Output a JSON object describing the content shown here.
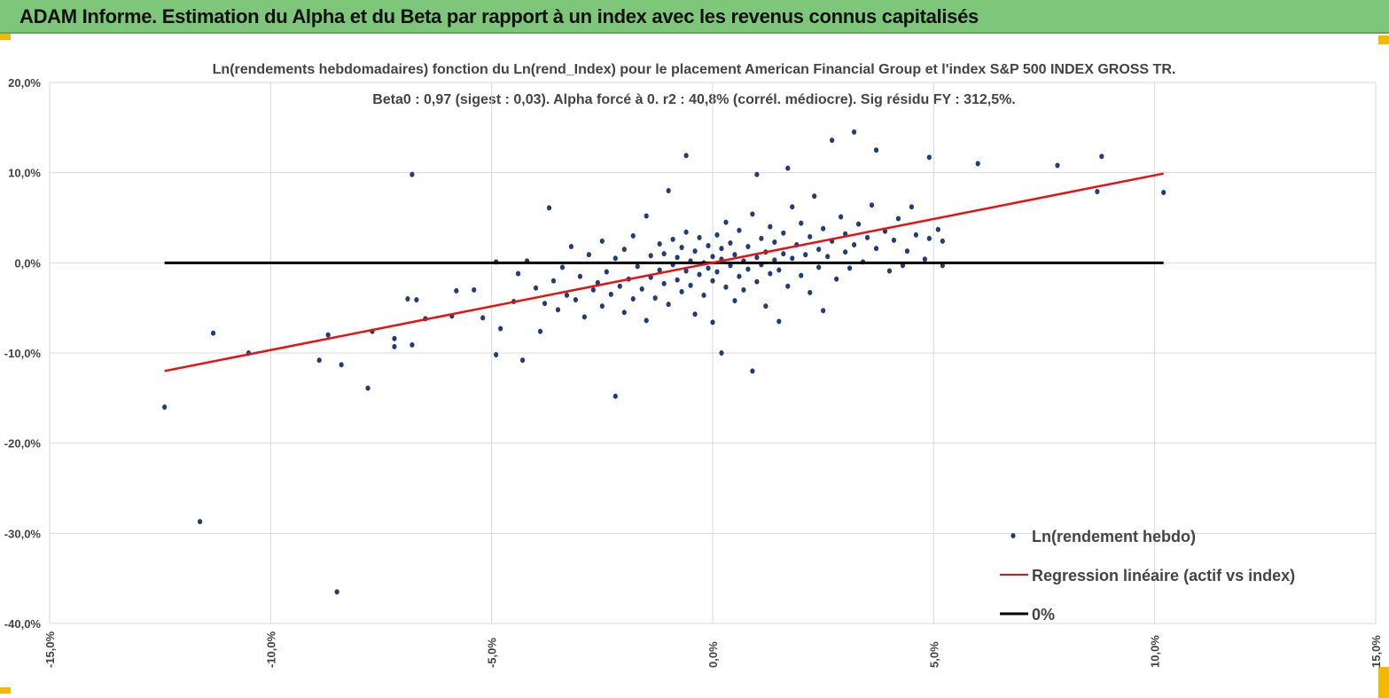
{
  "header": {
    "title": "ADAM Informe. Estimation du Alpha et du Beta par rapport à un index avec les revenus connus capitalisés"
  },
  "chart_data": {
    "type": "scatter",
    "title": "Ln(rendements hebdomadaires) fonction du Ln(rend_Index) pour le placement American Financial Group  et l'index S&P 500 INDEX GROSS TR.",
    "subtitle": "Beta0 : 0,97  (sigest : 0,03). Alpha forcé à 0. r2 : 40,8% (corrél. médiocre). Sig résidu FY : 312,5%.",
    "xlim": [
      -15,
      15
    ],
    "ylim": [
      -40,
      20
    ],
    "x_ticks": [
      -15,
      -10,
      -5,
      0,
      5,
      10,
      15
    ],
    "y_ticks": [
      20,
      10,
      0,
      -10,
      -20,
      -30,
      -40
    ],
    "x_tick_labels": [
      "-15,0%",
      "-10,0%",
      "-5,0%",
      "0,0%",
      "5,0%",
      "10,0%",
      "15,0%"
    ],
    "y_tick_labels": [
      "20,0%",
      "10,0%",
      "0,0%",
      "-10,0%",
      "-20,0%",
      "-30,0%",
      "-40,0%"
    ],
    "grid": true,
    "legend_placement": "bottom-right",
    "series": [
      {
        "name": "Ln(rendement hebdo)",
        "kind": "scatter",
        "color": "#1f3d7a",
        "points": [
          [
            -12.4,
            -16
          ],
          [
            -11.6,
            -28.7
          ],
          [
            -11.3,
            -7.8
          ],
          [
            -10.5,
            -10
          ],
          [
            -8.9,
            -10.8
          ],
          [
            -8.7,
            -8
          ],
          [
            -8.4,
            -11.3
          ],
          [
            -7.8,
            -13.9
          ],
          [
            -7.7,
            -7.6
          ],
          [
            -7.2,
            -9.3
          ],
          [
            -7.2,
            -8.4
          ],
          [
            -6.9,
            -4
          ],
          [
            -6.8,
            -9.1
          ],
          [
            -6.8,
            9.8
          ],
          [
            -8.5,
            -36.5
          ],
          [
            -6.7,
            -4.1
          ],
          [
            -6.5,
            -6.2
          ],
          [
            -5.9,
            -5.9
          ],
          [
            -5.8,
            -3.1
          ],
          [
            -5.4,
            -3
          ],
          [
            -5.2,
            -6.1
          ],
          [
            -4.9,
            -10.2
          ],
          [
            -4.8,
            -7.3
          ],
          [
            -4.9,
            0.1
          ],
          [
            -4.5,
            -4.3
          ],
          [
            -4.3,
            -10.8
          ],
          [
            -4.4,
            -1.2
          ],
          [
            -4.2,
            0.2
          ],
          [
            -4,
            -2.8
          ],
          [
            -3.9,
            -7.6
          ],
          [
            -3.8,
            -4.5
          ],
          [
            -3.7,
            6.1
          ],
          [
            -3.6,
            -2
          ],
          [
            -3.5,
            -5.2
          ],
          [
            -3.4,
            -0.5
          ],
          [
            -3.3,
            -3.6
          ],
          [
            -3.2,
            1.8
          ],
          [
            -3.1,
            -4.1
          ],
          [
            -3,
            -1.5
          ],
          [
            -2.9,
            -6
          ],
          [
            -2.8,
            0.9
          ],
          [
            -2.7,
            -3
          ],
          [
            -2.6,
            -2.2
          ],
          [
            -2.5,
            2.4
          ],
          [
            -2.5,
            -4.8
          ],
          [
            -2.4,
            -1
          ],
          [
            -2.3,
            -3.5
          ],
          [
            -2.2,
            -14.8
          ],
          [
            -2.2,
            0.5
          ],
          [
            -2.1,
            -2.6
          ],
          [
            -2,
            -5.5
          ],
          [
            -2,
            1.5
          ],
          [
            -1.9,
            -1.8
          ],
          [
            -1.8,
            -4
          ],
          [
            -1.8,
            3
          ],
          [
            -1.7,
            -0.4
          ],
          [
            -1.6,
            -2.9
          ],
          [
            -1.5,
            5.2
          ],
          [
            -1.5,
            -6.4
          ],
          [
            -1.4,
            0.8
          ],
          [
            -1.4,
            -1.6
          ],
          [
            -1.3,
            -3.9
          ],
          [
            -1.2,
            2.1
          ],
          [
            -1.2,
            -0.8
          ],
          [
            -1.1,
            -2.3
          ],
          [
            -1.1,
            1
          ],
          [
            -1,
            8
          ],
          [
            -1,
            -4.6
          ],
          [
            -0.9,
            -0.2
          ],
          [
            -0.9,
            2.6
          ],
          [
            -0.8,
            -1.9
          ],
          [
            -0.8,
            0.6
          ],
          [
            -0.7,
            -3.2
          ],
          [
            -0.7,
            1.7
          ],
          [
            -0.6,
            11.9
          ],
          [
            -0.6,
            -0.9
          ],
          [
            -0.6,
            3.4
          ],
          [
            -0.5,
            -2.5
          ],
          [
            -0.5,
            0.2
          ],
          [
            -0.4,
            -5.7
          ],
          [
            -0.4,
            1.3
          ],
          [
            -0.3,
            -1.3
          ],
          [
            -0.3,
            2.8
          ],
          [
            -0.2,
            0
          ],
          [
            -0.2,
            -3.6
          ],
          [
            -0.1,
            1.9
          ],
          [
            -0.1,
            -0.6
          ],
          [
            0,
            -6.6
          ],
          [
            0,
            0.7
          ],
          [
            0,
            -2
          ],
          [
            0.1,
            3.1
          ],
          [
            0.1,
            -1
          ],
          [
            0.2,
            -10
          ],
          [
            0.2,
            0.4
          ],
          [
            0.2,
            1.6
          ],
          [
            0.3,
            -2.7
          ],
          [
            0.3,
            4.5
          ],
          [
            0.4,
            -0.3
          ],
          [
            0.4,
            2.2
          ],
          [
            0.5,
            -4.2
          ],
          [
            0.5,
            0.9
          ],
          [
            0.6,
            -1.5
          ],
          [
            0.6,
            3.6
          ],
          [
            0.7,
            0.2
          ],
          [
            0.7,
            -3
          ],
          [
            0.8,
            1.8
          ],
          [
            0.8,
            -0.7
          ],
          [
            0.9,
            -12
          ],
          [
            0.9,
            5.4
          ],
          [
            1,
            9.8
          ],
          [
            1,
            0.6
          ],
          [
            1,
            -2.1
          ],
          [
            1.1,
            2.7
          ],
          [
            1.1,
            -0.2
          ],
          [
            1.2,
            -4.8
          ],
          [
            1.2,
            1.2
          ],
          [
            1.3,
            4
          ],
          [
            1.3,
            -1.2
          ],
          [
            1.4,
            0.3
          ],
          [
            1.4,
            2.3
          ],
          [
            1.5,
            -6.5
          ],
          [
            1.5,
            -0.8
          ],
          [
            1.6,
            3.3
          ],
          [
            1.6,
            1
          ],
          [
            1.7,
            10.5
          ],
          [
            1.7,
            -2.6
          ],
          [
            1.8,
            6.2
          ],
          [
            1.8,
            0.5
          ],
          [
            1.9,
            2
          ],
          [
            2,
            -1.4
          ],
          [
            2,
            4.4
          ],
          [
            2.1,
            0.9
          ],
          [
            2.2,
            -3.3
          ],
          [
            2.2,
            2.9
          ],
          [
            2.3,
            7.4
          ],
          [
            2.4,
            1.5
          ],
          [
            2.4,
            -0.5
          ],
          [
            2.5,
            -5.3
          ],
          [
            2.5,
            3.8
          ],
          [
            2.6,
            0.7
          ],
          [
            2.7,
            13.6
          ],
          [
            2.7,
            2.4
          ],
          [
            2.8,
            -1.8
          ],
          [
            2.9,
            5.1
          ],
          [
            3,
            1.2
          ],
          [
            3,
            3.2
          ],
          [
            3.1,
            -0.6
          ],
          [
            3.2,
            14.5
          ],
          [
            3.2,
            2
          ],
          [
            3.3,
            4.3
          ],
          [
            3.4,
            0.1
          ],
          [
            3.5,
            2.8
          ],
          [
            3.6,
            6.4
          ],
          [
            3.7,
            12.5
          ],
          [
            3.7,
            1.6
          ],
          [
            3.9,
            3.5
          ],
          [
            4,
            -0.9
          ],
          [
            4.1,
            2.5
          ],
          [
            4.2,
            4.9
          ],
          [
            4.3,
            -0.3
          ],
          [
            4.4,
            1.3
          ],
          [
            4.5,
            6.2
          ],
          [
            4.6,
            3.1
          ],
          [
            4.8,
            0.4
          ],
          [
            4.9,
            11.7
          ],
          [
            4.9,
            2.7
          ],
          [
            5.1,
            3.7
          ],
          [
            5.2,
            -0.3
          ],
          [
            5.2,
            2.4
          ],
          [
            6,
            11
          ],
          [
            7.8,
            10.8
          ],
          [
            8.7,
            7.9
          ],
          [
            8.8,
            11.8
          ],
          [
            10.2,
            7.8
          ]
        ]
      },
      {
        "name": "Regression linéaire (actif vs index)",
        "kind": "line",
        "color": "#e81010",
        "points": [
          [
            -12.4,
            -12.0
          ],
          [
            10.2,
            9.9
          ]
        ]
      },
      {
        "name": "0%",
        "kind": "line",
        "color": "#000000",
        "points": [
          [
            -12.4,
            0
          ],
          [
            10.2,
            0
          ]
        ]
      }
    ]
  }
}
